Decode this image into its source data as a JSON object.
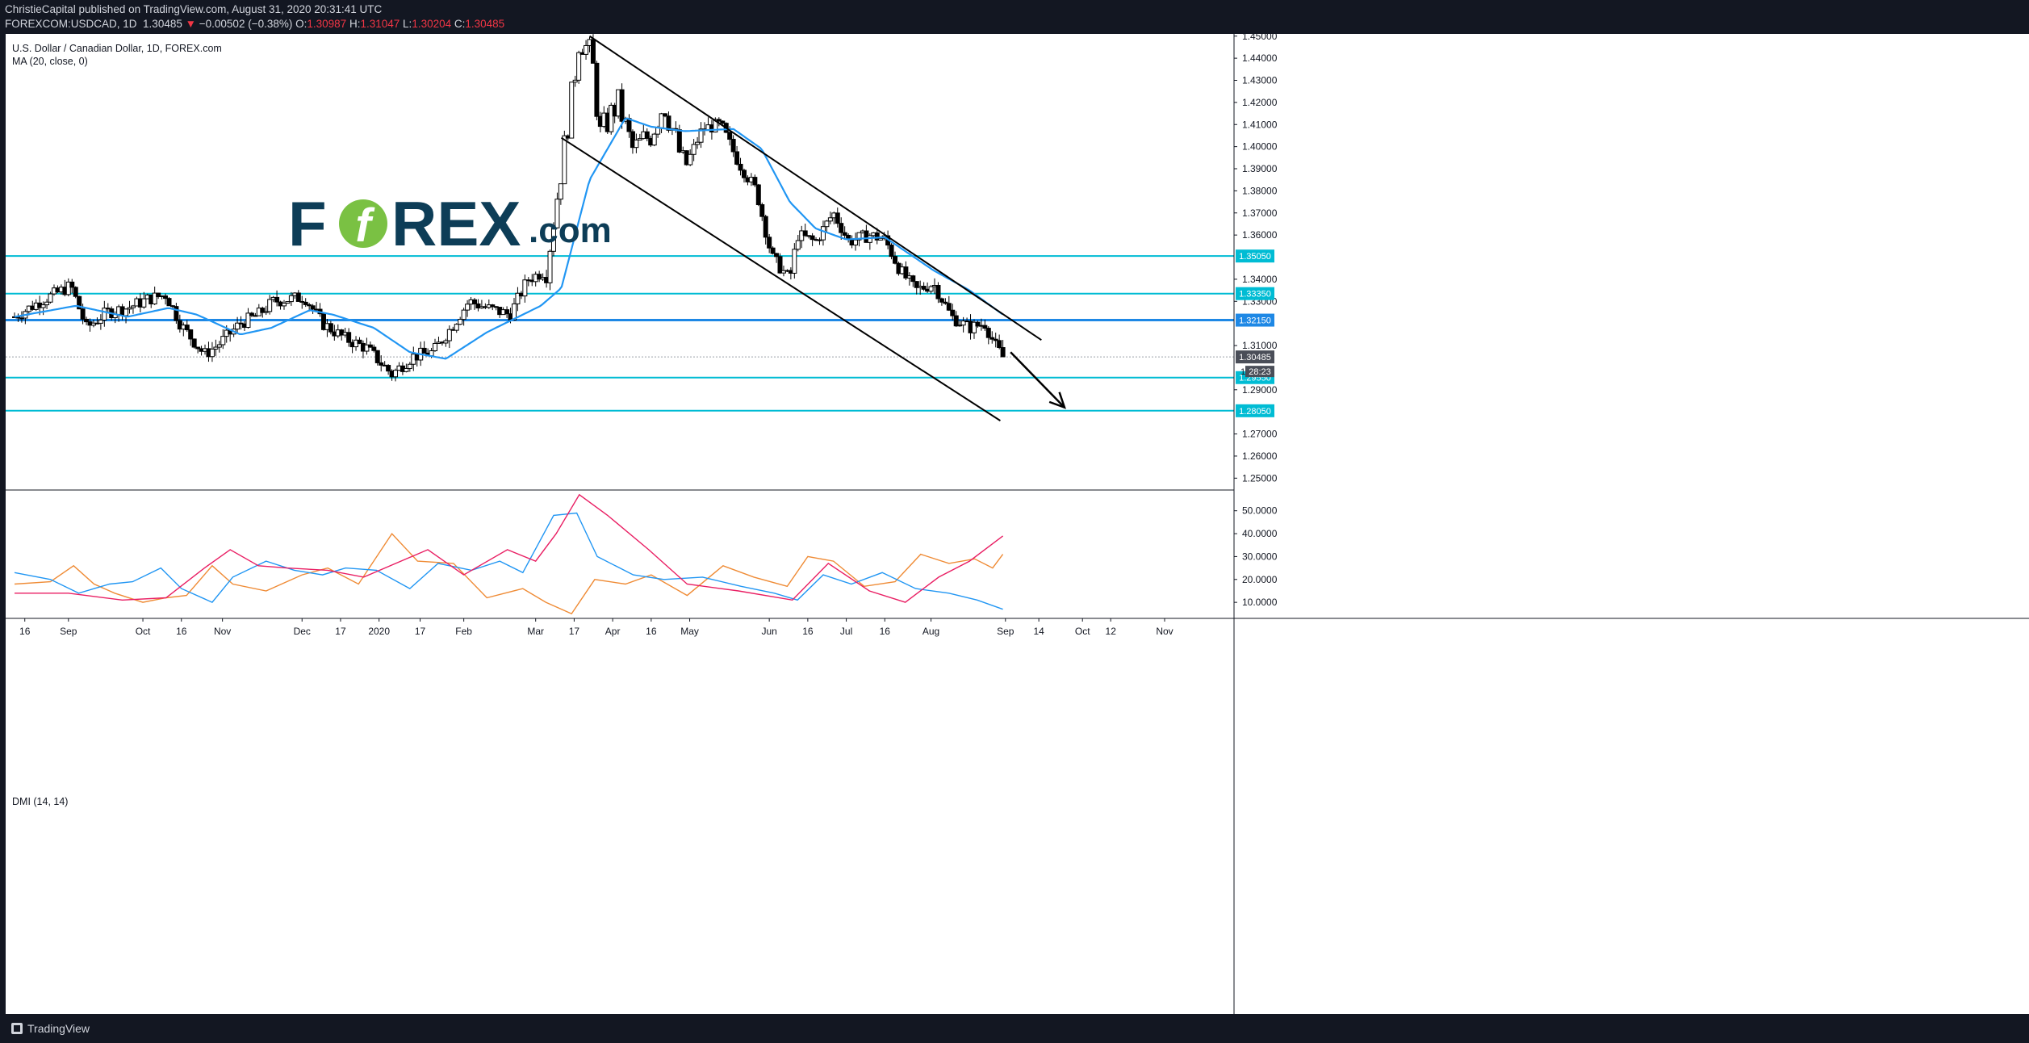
{
  "header": {
    "published_line": "ChristieCapital published on TradingView.com, August 31, 2020 20:31:41 UTC",
    "symbol": "FOREXCOM:USDCAD, 1D",
    "last": "1.30485",
    "change_arrow": "▼",
    "change": "−0.00502 (−0.38%)",
    "open_label": "O:",
    "open": "1.30987",
    "high_label": "H:",
    "high": "1.31047",
    "low_label": "L:",
    "low": "1.30204",
    "close_label": "C:",
    "close": "1.30485"
  },
  "legend": {
    "title": "U.S. Dollar / Canadian Dollar, 1D, FOREX.com",
    "ma_label": "MA (20, close, 0)",
    "dmi_label": "DMI (14, 14)"
  },
  "watermark": {
    "brand_text_a": "F",
    "brand_text_b": "REX",
    "brand_suffix": ".com",
    "brand_color": "#0d3d57",
    "accent_color": "#7ac143"
  },
  "footer": {
    "brand": "TradingView"
  },
  "colors": {
    "candle_up": "#ffffff",
    "candle_down": "#000000",
    "ma": "#2196f3",
    "level_line": "#00bcd4",
    "level_line_strong": "#1e88e5",
    "dmi_plus": "#ef8b35",
    "dmi_minus": "#2196f3",
    "adx": "#e91e63",
    "price_tag_text": "#ffffff"
  },
  "chart_data": {
    "type": "candlestick",
    "price_axis": {
      "ylim": [
        1.245,
        1.451
      ],
      "ticks": [
        "1.45000",
        "1.44000",
        "1.43000",
        "1.42000",
        "1.41000",
        "1.40000",
        "1.39000",
        "1.38000",
        "1.37000",
        "1.36000",
        "1.34000",
        "1.33000",
        "1.31000",
        "1.29000",
        "1.27000",
        "1.26000",
        "1.25000"
      ]
    },
    "x_axis": {
      "labels": [
        {
          "label": "16",
          "date": "2019-08-16"
        },
        {
          "label": "Sep",
          "date": "2019-09-02"
        },
        {
          "label": "Oct",
          "date": "2019-10-01"
        },
        {
          "label": "16",
          "date": "2019-10-16"
        },
        {
          "label": "Nov",
          "date": "2019-11-01"
        },
        {
          "label": "Dec",
          "date": "2019-12-02"
        },
        {
          "label": "17",
          "date": "2019-12-17"
        },
        {
          "label": "2020",
          "date": "2020-01-01"
        },
        {
          "label": "17",
          "date": "2020-01-17"
        },
        {
          "label": "Feb",
          "date": "2020-02-03"
        },
        {
          "label": "Mar",
          "date": "2020-03-02"
        },
        {
          "label": "17",
          "date": "2020-03-17"
        },
        {
          "label": "Apr",
          "date": "2020-04-01"
        },
        {
          "label": "16",
          "date": "2020-04-16"
        },
        {
          "label": "May",
          "date": "2020-05-01"
        },
        {
          "label": "Jun",
          "date": "2020-06-01"
        },
        {
          "label": "16",
          "date": "2020-06-16"
        },
        {
          "label": "Jul",
          "date": "2020-07-01"
        },
        {
          "label": "16",
          "date": "2020-07-16"
        },
        {
          "label": "Aug",
          "date": "2020-08-03"
        },
        {
          "label": "Sep",
          "date": "2020-09-01"
        },
        {
          "label": "14",
          "date": "2020-09-14"
        },
        {
          "label": "Oct",
          "date": "2020-10-01"
        },
        {
          "label": "12",
          "date": "2020-10-12"
        },
        {
          "label": "Nov",
          "date": "2020-11-02"
        }
      ]
    },
    "price_path": [
      [
        "2019-08-12",
        1.323
      ],
      [
        "2019-08-22",
        1.33
      ],
      [
        "2019-09-03",
        1.337
      ],
      [
        "2019-09-09",
        1.318
      ],
      [
        "2019-09-17",
        1.325
      ],
      [
        "2019-09-25",
        1.327
      ],
      [
        "2019-10-03",
        1.331
      ],
      [
        "2019-10-10",
        1.333
      ],
      [
        "2019-10-16",
        1.319
      ],
      [
        "2019-10-25",
        1.306
      ],
      [
        "2019-10-30",
        1.31
      ],
      [
        "2019-11-08",
        1.32
      ],
      [
        "2019-11-15",
        1.324
      ],
      [
        "2019-11-21",
        1.33
      ],
      [
        "2019-12-03",
        1.332
      ],
      [
        "2019-12-10",
        1.32
      ],
      [
        "2019-12-19",
        1.313
      ],
      [
        "2019-12-27",
        1.309
      ],
      [
        "2020-01-06",
        1.297
      ],
      [
        "2020-01-14",
        1.305
      ],
      [
        "2020-01-22",
        1.307
      ],
      [
        "2020-01-29",
        1.318
      ],
      [
        "2020-02-05",
        1.33
      ],
      [
        "2020-02-12",
        1.327
      ],
      [
        "2020-02-21",
        1.324
      ],
      [
        "2020-02-28",
        1.34
      ],
      [
        "2020-03-06",
        1.344
      ],
      [
        "2020-03-12",
        1.39
      ],
      [
        "2020-03-17",
        1.43
      ],
      [
        "2020-03-19",
        1.45
      ],
      [
        "2020-03-24",
        1.44
      ],
      [
        "2020-03-27",
        1.405
      ],
      [
        "2020-04-03",
        1.42
      ],
      [
        "2020-04-09",
        1.398
      ],
      [
        "2020-04-16",
        1.406
      ],
      [
        "2020-04-21",
        1.42
      ],
      [
        "2020-04-29",
        1.39
      ],
      [
        "2020-05-06",
        1.408
      ],
      [
        "2020-05-13",
        1.41
      ],
      [
        "2020-05-20",
        1.393
      ],
      [
        "2020-05-27",
        1.38
      ],
      [
        "2020-06-02",
        1.35
      ],
      [
        "2020-06-09",
        1.34
      ],
      [
        "2020-06-12",
        1.36
      ],
      [
        "2020-06-19",
        1.357
      ],
      [
        "2020-06-26",
        1.37
      ],
      [
        "2020-07-02",
        1.357
      ],
      [
        "2020-07-10",
        1.36
      ],
      [
        "2020-07-16",
        1.358
      ],
      [
        "2020-07-22",
        1.344
      ],
      [
        "2020-07-28",
        1.335
      ],
      [
        "2020-08-04",
        1.338
      ],
      [
        "2020-08-11",
        1.323
      ],
      [
        "2020-08-18",
        1.318
      ],
      [
        "2020-08-24",
        1.32
      ],
      [
        "2020-08-28",
        1.31
      ],
      [
        "2020-08-31",
        1.30485
      ]
    ],
    "ma20_path": [
      [
        "2019-08-12",
        1.323
      ],
      [
        "2019-09-05",
        1.328
      ],
      [
        "2019-09-25",
        1.323
      ],
      [
        "2019-10-11",
        1.327
      ],
      [
        "2019-10-22",
        1.324
      ],
      [
        "2019-11-08",
        1.315
      ],
      [
        "2019-11-20",
        1.318
      ],
      [
        "2019-12-05",
        1.326
      ],
      [
        "2019-12-14",
        1.324
      ],
      [
        "2019-12-30",
        1.318
      ],
      [
        "2020-01-13",
        1.307
      ],
      [
        "2020-01-27",
        1.304
      ],
      [
        "2020-02-12",
        1.316
      ],
      [
        "2020-03-04",
        1.328
      ],
      [
        "2020-03-12",
        1.336
      ],
      [
        "2020-03-23",
        1.385
      ],
      [
        "2020-04-06",
        1.413
      ],
      [
        "2020-04-16",
        1.409
      ],
      [
        "2020-04-29",
        1.407
      ],
      [
        "2020-05-18",
        1.408
      ],
      [
        "2020-05-29",
        1.399
      ],
      [
        "2020-06-09",
        1.375
      ],
      [
        "2020-06-19",
        1.363
      ],
      [
        "2020-07-01",
        1.358
      ],
      [
        "2020-07-16",
        1.359
      ],
      [
        "2020-08-04",
        1.344
      ],
      [
        "2020-08-18",
        1.335
      ],
      [
        "2020-08-31",
        1.324
      ]
    ],
    "levels": [
      {
        "value": "1.35050",
        "y": 1.3505,
        "strong": false
      },
      {
        "value": "1.33350",
        "y": 1.3335,
        "strong": false
      },
      {
        "value": "1.32150",
        "y": 1.3215,
        "strong": true
      },
      {
        "value": "1.29550",
        "y": 1.2955,
        "strong": false
      },
      {
        "value": "1.28050",
        "y": 1.2805,
        "strong": false
      }
    ],
    "last_price": {
      "value": "1.30485",
      "y": 1.30485,
      "countdown": "28:23",
      "adjacent": "1.3"
    },
    "trendlines": [
      {
        "from": [
          "2020-03-23",
          1.45
        ],
        "to": [
          "2020-09-15",
          1.3125
        ]
      },
      {
        "from": [
          "2020-03-12",
          1.404
        ],
        "to": [
          "2020-08-30",
          1.276
        ]
      }
    ],
    "projection_arrow": {
      "from": [
        "2020-09-03",
        1.307
      ],
      "to": [
        "2020-09-24",
        1.282
      ]
    },
    "dmi": {
      "ylim": [
        3,
        58
      ],
      "ticks": [
        "50.0000",
        "40.0000",
        "30.0000",
        "20.0000",
        "10.0000"
      ],
      "series": [
        {
          "key": "plus",
          "points": [
            [
              "2019-08-12",
              18
            ],
            [
              "2019-08-26",
              19
            ],
            [
              "2019-09-04",
              26
            ],
            [
              "2019-09-12",
              18
            ],
            [
              "2019-09-20",
              14
            ],
            [
              "2019-10-01",
              10
            ],
            [
              "2019-10-10",
              12
            ],
            [
              "2019-10-18",
              13
            ],
            [
              "2019-10-28",
              26
            ],
            [
              "2019-11-05",
              18
            ],
            [
              "2019-11-18",
              15
            ],
            [
              "2019-12-02",
              22
            ],
            [
              "2019-12-12",
              25
            ],
            [
              "2019-12-24",
              18
            ],
            [
              "2020-01-06",
              40
            ],
            [
              "2020-01-16",
              28
            ],
            [
              "2020-01-30",
              27
            ],
            [
              "2020-02-12",
              12
            ],
            [
              "2020-02-26",
              16
            ],
            [
              "2020-03-06",
              10
            ],
            [
              "2020-03-16",
              5
            ],
            [
              "2020-03-25",
              20
            ],
            [
              "2020-04-06",
              18
            ],
            [
              "2020-04-16",
              22
            ],
            [
              "2020-04-30",
              13
            ],
            [
              "2020-05-14",
              26
            ],
            [
              "2020-05-26",
              21
            ],
            [
              "2020-06-08",
              17
            ],
            [
              "2020-06-16",
              30
            ],
            [
              "2020-06-26",
              28
            ],
            [
              "2020-07-08",
              17
            ],
            [
              "2020-07-20",
              19
            ],
            [
              "2020-07-30",
              31
            ],
            [
              "2020-08-10",
              27
            ],
            [
              "2020-08-20",
              29
            ],
            [
              "2020-08-27",
              25
            ],
            [
              "2020-08-31",
              31
            ]
          ]
        },
        {
          "key": "minus",
          "points": [
            [
              "2019-08-12",
              23
            ],
            [
              "2019-08-26",
              20
            ],
            [
              "2019-09-06",
              14
            ],
            [
              "2019-09-18",
              18
            ],
            [
              "2019-09-27",
              19
            ],
            [
              "2019-10-08",
              25
            ],
            [
              "2019-10-16",
              16
            ],
            [
              "2019-10-28",
              10
            ],
            [
              "2019-11-05",
              21
            ],
            [
              "2019-11-18",
              28
            ],
            [
              "2019-11-29",
              24
            ],
            [
              "2019-12-10",
              22
            ],
            [
              "2019-12-19",
              25
            ],
            [
              "2019-12-31",
              24
            ],
            [
              "2020-01-13",
              16
            ],
            [
              "2020-01-24",
              27
            ],
            [
              "2020-02-06",
              24
            ],
            [
              "2020-02-17",
              28
            ],
            [
              "2020-02-26",
              23
            ],
            [
              "2020-03-09",
              48
            ],
            [
              "2020-03-18",
              49
            ],
            [
              "2020-03-26",
              30
            ],
            [
              "2020-04-09",
              22
            ],
            [
              "2020-04-21",
              20
            ],
            [
              "2020-05-06",
              21
            ],
            [
              "2020-05-21",
              17
            ],
            [
              "2020-06-03",
              14
            ],
            [
              "2020-06-12",
              11
            ],
            [
              "2020-06-22",
              22
            ],
            [
              "2020-07-03",
              18
            ],
            [
              "2020-07-15",
              23
            ],
            [
              "2020-07-28",
              16
            ],
            [
              "2020-08-10",
              14
            ],
            [
              "2020-08-21",
              11
            ],
            [
              "2020-08-31",
              7
            ]
          ]
        },
        {
          "key": "adx",
          "points": [
            [
              "2019-08-12",
              14
            ],
            [
              "2019-09-02",
              14
            ],
            [
              "2019-09-23",
              11
            ],
            [
              "2019-10-10",
              12
            ],
            [
              "2019-10-25",
              25
            ],
            [
              "2019-11-04",
              33
            ],
            [
              "2019-11-15",
              26
            ],
            [
              "2019-11-26",
              25
            ],
            [
              "2019-12-12",
              24
            ],
            [
              "2019-12-26",
              21
            ],
            [
              "2020-01-20",
              33
            ],
            [
              "2020-02-03",
              22
            ],
            [
              "2020-02-20",
              33
            ],
            [
              "2020-03-02",
              28
            ],
            [
              "2020-03-10",
              40
            ],
            [
              "2020-03-19",
              57
            ],
            [
              "2020-03-30",
              48
            ],
            [
              "2020-04-15",
              33
            ],
            [
              "2020-04-30",
              18
            ],
            [
              "2020-05-20",
              15
            ],
            [
              "2020-06-10",
              11
            ],
            [
              "2020-06-24",
              27
            ],
            [
              "2020-07-10",
              15
            ],
            [
              "2020-07-24",
              10
            ],
            [
              "2020-08-06",
              21
            ],
            [
              "2020-08-18",
              28
            ],
            [
              "2020-08-31",
              39
            ]
          ]
        }
      ]
    }
  }
}
